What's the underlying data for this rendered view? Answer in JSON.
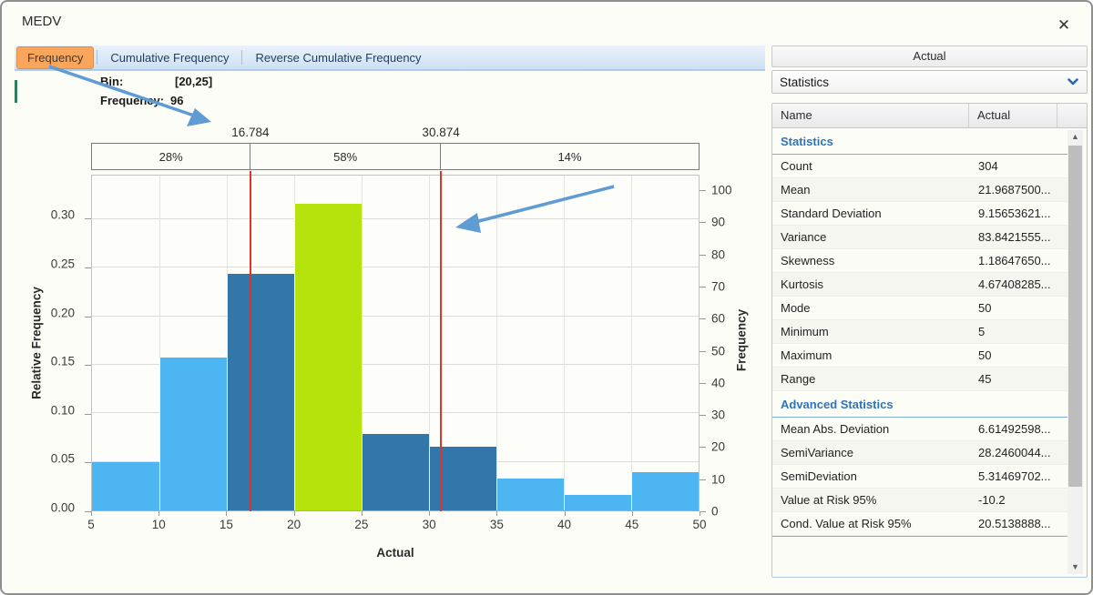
{
  "window": {
    "title": "MEDV",
    "close_icon": "✕"
  },
  "tabs": [
    {
      "label": "Frequency",
      "active": true
    },
    {
      "label": "Cumulative Frequency",
      "active": false
    },
    {
      "label": "Reverse Cumulative Frequency",
      "active": false
    }
  ],
  "tooltip": {
    "bin_label": "Bin:",
    "bin_value": "[20,25]",
    "freq_label": "Frequency:",
    "freq_value": "96"
  },
  "chart_data": {
    "type": "bar",
    "title": "",
    "xlabel": "Actual",
    "ylabel_left": "Relative Frequency",
    "ylabel_right": "Frequency",
    "xlim": [
      5,
      50
    ],
    "left_ylim": [
      0,
      0.345
    ],
    "total_count": 304,
    "x_ticks": [
      5,
      10,
      15,
      20,
      25,
      30,
      35,
      40,
      45,
      50
    ],
    "left_ticks": [
      0.0,
      0.05,
      0.1,
      0.15,
      0.2,
      0.25,
      0.3
    ],
    "left_tick_labels": [
      "0.00",
      "0.05",
      "0.10",
      "0.15",
      "0.20",
      "0.25",
      "0.30"
    ],
    "right_ticks": [
      0,
      10,
      20,
      30,
      40,
      50,
      60,
      70,
      80,
      90,
      100
    ],
    "bins": [
      [
        5,
        10
      ],
      [
        10,
        15
      ],
      [
        15,
        20
      ],
      [
        20,
        25
      ],
      [
        25,
        30
      ],
      [
        30,
        35
      ],
      [
        35,
        40
      ],
      [
        40,
        45
      ],
      [
        45,
        50
      ]
    ],
    "frequency": [
      15,
      48,
      74,
      96,
      24,
      20,
      10,
      5,
      12
    ],
    "relative_frequency": [
      0.0493,
      0.1579,
      0.2434,
      0.3158,
      0.0789,
      0.0658,
      0.0329,
      0.0164,
      0.0395
    ],
    "bar_color_keys": [
      "light",
      "light",
      "dark",
      "highlight",
      "dark",
      "dark",
      "light",
      "light",
      "light"
    ],
    "colors": {
      "light": "#4DB5F2",
      "dark": "#3376A9",
      "highlight": "#B5E30B",
      "marker_line": "#DF342B",
      "arrow": "#5E9CD3",
      "active_tab": "#F9A65C"
    },
    "markers": [
      {
        "value": 16.784,
        "label": "16.784"
      },
      {
        "value": 30.874,
        "label": "30.874"
      }
    ],
    "segments": [
      {
        "label": "28%"
      },
      {
        "label": "58%"
      },
      {
        "label": "14%"
      }
    ],
    "grid": true,
    "legend": "none"
  },
  "panel": {
    "header": "Actual",
    "dropdown": {
      "value": "Statistics",
      "chevron_icon": "chevron-down"
    },
    "table": {
      "columns": [
        "Name",
        "Actual"
      ],
      "sections": [
        {
          "title": "Statistics",
          "rows": [
            [
              "Count",
              "304"
            ],
            [
              "Mean",
              "21.9687500..."
            ],
            [
              "Standard Deviation",
              "9.15653621..."
            ],
            [
              "Variance",
              "83.8421555..."
            ],
            [
              "Skewness",
              "1.18647650..."
            ],
            [
              "Kurtosis",
              "4.67408285..."
            ],
            [
              "Mode",
              "50"
            ],
            [
              "Minimum",
              "5"
            ],
            [
              "Maximum",
              "50"
            ],
            [
              "Range",
              "45"
            ]
          ]
        },
        {
          "title": "Advanced Statistics",
          "rows": [
            [
              "Mean Abs. Deviation",
              "6.61492598..."
            ],
            [
              "SemiVariance",
              "28.2460044..."
            ],
            [
              "SemiDeviation",
              "5.31469702..."
            ],
            [
              "Value at Risk 95%",
              "-10.2"
            ],
            [
              "Cond. Value at Risk 95%",
              "20.5138888..."
            ]
          ]
        }
      ]
    }
  }
}
